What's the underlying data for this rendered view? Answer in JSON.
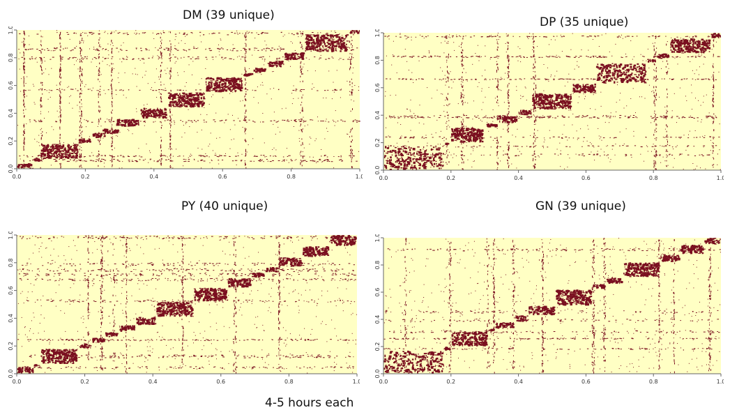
{
  "footer": {
    "caption": "4-5 hours each"
  },
  "colors": {
    "background": "#FFFFC4",
    "mark": "#7A1020",
    "axis": "#666666"
  },
  "chart_data": [
    {
      "type": "heatmap",
      "title": "DM (39 unique)",
      "xlim": [
        0,
        1
      ],
      "ylim": [
        0,
        1
      ],
      "x_ticks": [
        "0.0",
        "0.2",
        "0.4",
        "0.6",
        "0.8",
        "1.0"
      ],
      "y_ticks": [
        "0.0",
        "0.2",
        "0.4",
        "0.6",
        "0.8",
        "1.0"
      ],
      "blocks": [
        {
          "x": [
            0.0,
            0.05
          ],
          "y": [
            0.0,
            0.04
          ]
        },
        {
          "x": [
            0.05,
            0.07
          ],
          "y": [
            0.05,
            0.08
          ]
        },
        {
          "x": [
            0.07,
            0.18
          ],
          "y": [
            0.07,
            0.18
          ]
        },
        {
          "x": [
            0.18,
            0.22
          ],
          "y": [
            0.18,
            0.22
          ]
        },
        {
          "x": [
            0.22,
            0.26
          ],
          "y": [
            0.22,
            0.26
          ]
        },
        {
          "x": [
            0.25,
            0.3
          ],
          "y": [
            0.25,
            0.29
          ]
        },
        {
          "x": [
            0.29,
            0.36
          ],
          "y": [
            0.3,
            0.36
          ]
        },
        {
          "x": [
            0.36,
            0.44
          ],
          "y": [
            0.36,
            0.44
          ]
        },
        {
          "x": [
            0.44,
            0.55
          ],
          "y": [
            0.44,
            0.55
          ]
        },
        {
          "x": [
            0.55,
            0.66
          ],
          "y": [
            0.55,
            0.66
          ]
        },
        {
          "x": [
            0.66,
            0.69
          ],
          "y": [
            0.66,
            0.69
          ]
        },
        {
          "x": [
            0.69,
            0.73
          ],
          "y": [
            0.69,
            0.73
          ]
        },
        {
          "x": [
            0.73,
            0.78
          ],
          "y": [
            0.73,
            0.78
          ]
        },
        {
          "x": [
            0.78,
            0.84
          ],
          "y": [
            0.78,
            0.84
          ]
        },
        {
          "x": [
            0.84,
            0.97
          ],
          "y": [
            0.84,
            0.97
          ]
        },
        {
          "x": [
            0.97,
            1.0
          ],
          "y": [
            0.97,
            1.0
          ]
        }
      ]
    },
    {
      "type": "heatmap",
      "title": "DP (35 unique)",
      "xlim": [
        0,
        1
      ],
      "ylim": [
        0,
        1
      ],
      "x_ticks": [
        "0.0",
        "0.2",
        "0.4",
        "0.6",
        "0.8",
        "1.0"
      ],
      "y_ticks": [
        "0.0",
        "0.2",
        "0.4",
        "0.6",
        "0.8",
        "1.0"
      ],
      "blocks": [
        {
          "x": [
            0.0,
            0.18
          ],
          "y": [
            0.0,
            0.18
          ]
        },
        {
          "x": [
            0.18,
            0.2
          ],
          "y": [
            0.18,
            0.2
          ]
        },
        {
          "x": [
            0.2,
            0.3
          ],
          "y": [
            0.2,
            0.31
          ]
        },
        {
          "x": [
            0.3,
            0.34
          ],
          "y": [
            0.31,
            0.34
          ]
        },
        {
          "x": [
            0.34,
            0.4
          ],
          "y": [
            0.34,
            0.4
          ]
        },
        {
          "x": [
            0.4,
            0.44
          ],
          "y": [
            0.4,
            0.44
          ]
        },
        {
          "x": [
            0.44,
            0.56
          ],
          "y": [
            0.44,
            0.56
          ]
        },
        {
          "x": [
            0.56,
            0.63
          ],
          "y": [
            0.56,
            0.63
          ]
        },
        {
          "x": [
            0.63,
            0.78
          ],
          "y": [
            0.63,
            0.78
          ]
        },
        {
          "x": [
            0.78,
            0.81
          ],
          "y": [
            0.78,
            0.81
          ]
        },
        {
          "x": [
            0.81,
            0.85
          ],
          "y": [
            0.81,
            0.85
          ]
        },
        {
          "x": [
            0.85,
            0.97
          ],
          "y": [
            0.85,
            0.96
          ]
        },
        {
          "x": [
            0.97,
            1.0
          ],
          "y": [
            0.96,
            1.0
          ]
        }
      ]
    },
    {
      "type": "heatmap",
      "title": "PY (40 unique)",
      "xlim": [
        0,
        1
      ],
      "ylim": [
        0,
        1
      ],
      "x_ticks": [
        "0.0",
        "0.2",
        "0.4",
        "0.6",
        "0.8",
        "1.0"
      ],
      "y_ticks": [
        "0.0",
        "0.2",
        "0.4",
        "0.6",
        "0.8",
        "1.0"
      ],
      "blocks": [
        {
          "x": [
            0.0,
            0.05
          ],
          "y": [
            0.0,
            0.05
          ]
        },
        {
          "x": [
            0.05,
            0.07
          ],
          "y": [
            0.05,
            0.07
          ]
        },
        {
          "x": [
            0.07,
            0.18
          ],
          "y": [
            0.07,
            0.18
          ]
        },
        {
          "x": [
            0.18,
            0.22
          ],
          "y": [
            0.18,
            0.22
          ]
        },
        {
          "x": [
            0.22,
            0.26
          ],
          "y": [
            0.22,
            0.26
          ]
        },
        {
          "x": [
            0.26,
            0.3
          ],
          "y": [
            0.26,
            0.3
          ]
        },
        {
          "x": [
            0.3,
            0.35
          ],
          "y": [
            0.3,
            0.35
          ]
        },
        {
          "x": [
            0.35,
            0.41
          ],
          "y": [
            0.35,
            0.41
          ]
        },
        {
          "x": [
            0.41,
            0.52
          ],
          "y": [
            0.41,
            0.52
          ]
        },
        {
          "x": [
            0.52,
            0.62
          ],
          "y": [
            0.52,
            0.62
          ]
        },
        {
          "x": [
            0.62,
            0.69
          ],
          "y": [
            0.62,
            0.69
          ]
        },
        {
          "x": [
            0.69,
            0.73
          ],
          "y": [
            0.69,
            0.73
          ]
        },
        {
          "x": [
            0.73,
            0.77
          ],
          "y": [
            0.73,
            0.77
          ]
        },
        {
          "x": [
            0.77,
            0.84
          ],
          "y": [
            0.77,
            0.84
          ]
        },
        {
          "x": [
            0.84,
            0.92
          ],
          "y": [
            0.84,
            0.92
          ]
        },
        {
          "x": [
            0.92,
            1.0
          ],
          "y": [
            0.92,
            1.0
          ]
        }
      ]
    },
    {
      "type": "heatmap",
      "title": "GN (39 unique)",
      "xlim": [
        0,
        1
      ],
      "ylim": [
        0,
        1
      ],
      "x_ticks": [
        "0.0",
        "0.2",
        "0.4",
        "0.6",
        "0.8",
        "1.0"
      ],
      "y_ticks": [
        "0.0",
        "0.2",
        "0.4",
        "0.6",
        "0.8",
        "1.0"
      ],
      "blocks": [
        {
          "x": [
            0.0,
            0.18
          ],
          "y": [
            0.0,
            0.17
          ]
        },
        {
          "x": [
            0.18,
            0.2
          ],
          "y": [
            0.17,
            0.2
          ]
        },
        {
          "x": [
            0.2,
            0.31
          ],
          "y": [
            0.2,
            0.31
          ]
        },
        {
          "x": [
            0.31,
            0.33
          ],
          "y": [
            0.31,
            0.33
          ]
        },
        {
          "x": [
            0.33,
            0.39
          ],
          "y": [
            0.33,
            0.38
          ]
        },
        {
          "x": [
            0.39,
            0.43
          ],
          "y": [
            0.38,
            0.43
          ]
        },
        {
          "x": [
            0.43,
            0.51
          ],
          "y": [
            0.43,
            0.5
          ]
        },
        {
          "x": [
            0.51,
            0.62
          ],
          "y": [
            0.5,
            0.62
          ]
        },
        {
          "x": [
            0.62,
            0.66
          ],
          "y": [
            0.62,
            0.66
          ]
        },
        {
          "x": [
            0.66,
            0.71
          ],
          "y": [
            0.66,
            0.71
          ]
        },
        {
          "x": [
            0.71,
            0.82
          ],
          "y": [
            0.71,
            0.82
          ]
        },
        {
          "x": [
            0.82,
            0.88
          ],
          "y": [
            0.82,
            0.88
          ]
        },
        {
          "x": [
            0.88,
            0.95
          ],
          "y": [
            0.88,
            0.95
          ]
        },
        {
          "x": [
            0.95,
            1.0
          ],
          "y": [
            0.95,
            1.0
          ]
        }
      ]
    }
  ]
}
